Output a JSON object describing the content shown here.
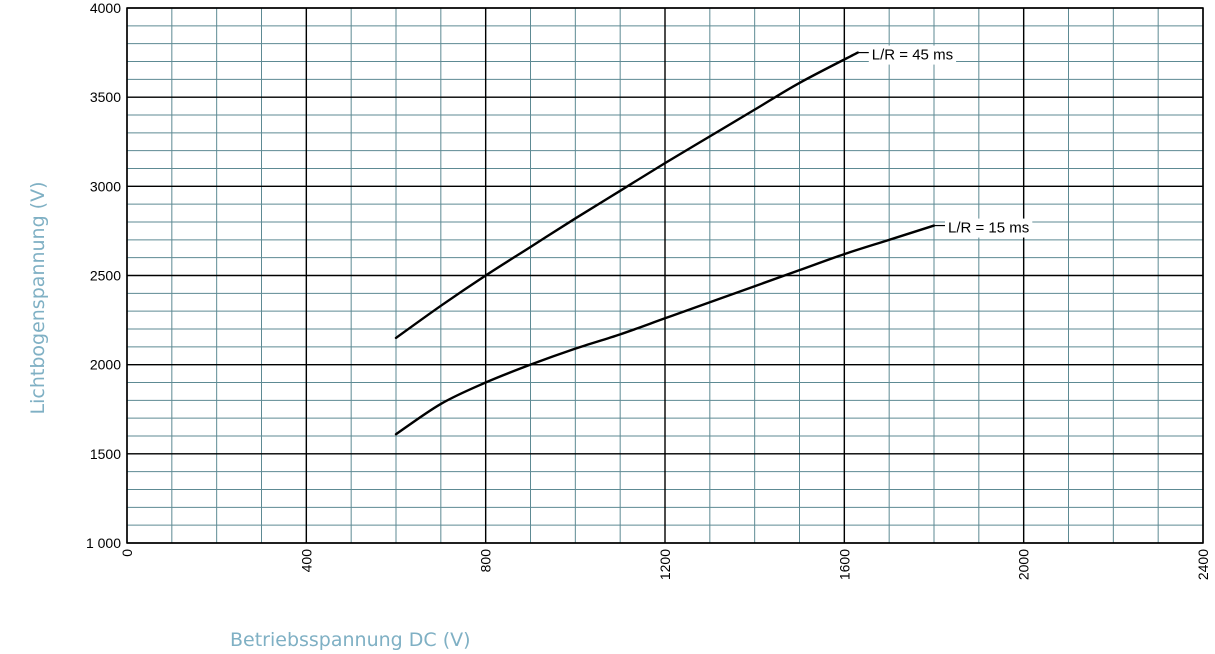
{
  "chart_data": {
    "type": "line",
    "xlabel": "Betriebsspannung DC (V)",
    "ylabel": "Lichtbogenspannung (V)",
    "xlim": [
      0,
      2400
    ],
    "ylim": [
      1000,
      4000
    ],
    "x_ticks": [
      "0",
      "400",
      "800",
      "1200",
      "1600",
      "2000",
      "2400"
    ],
    "y_ticks": [
      {
        "value": 1000,
        "label": "1 000"
      },
      {
        "value": 1500,
        "label": "1500"
      },
      {
        "value": 2000,
        "label": "2000"
      },
      {
        "value": 2500,
        "label": "2500"
      },
      {
        "value": 3000,
        "label": "3000"
      },
      {
        "value": 3500,
        "label": "3500"
      },
      {
        "value": 4000,
        "label": "4000"
      }
    ],
    "grid": true,
    "series": [
      {
        "name": "L/R = 45 ms",
        "x": [
          600,
          700,
          800,
          900,
          1000,
          1100,
          1200,
          1300,
          1400,
          1500,
          1630
        ],
        "y": [
          2150,
          2330,
          2500,
          2660,
          2820,
          2975,
          3130,
          3280,
          3430,
          3580,
          3750
        ]
      },
      {
        "name": "L/R = 15 ms",
        "x": [
          600,
          700,
          800,
          900,
          1000,
          1100,
          1200,
          1300,
          1400,
          1500,
          1600,
          1700,
          1800
        ],
        "y": [
          1610,
          1780,
          1900,
          2000,
          2090,
          2170,
          2260,
          2350,
          2440,
          2530,
          2620,
          2700,
          2780
        ]
      }
    ],
    "colors": {
      "minor_grid": "#5d8a93",
      "major_grid": "#000000",
      "curve": "#000000",
      "axis_title": "#7fb0c4"
    }
  }
}
